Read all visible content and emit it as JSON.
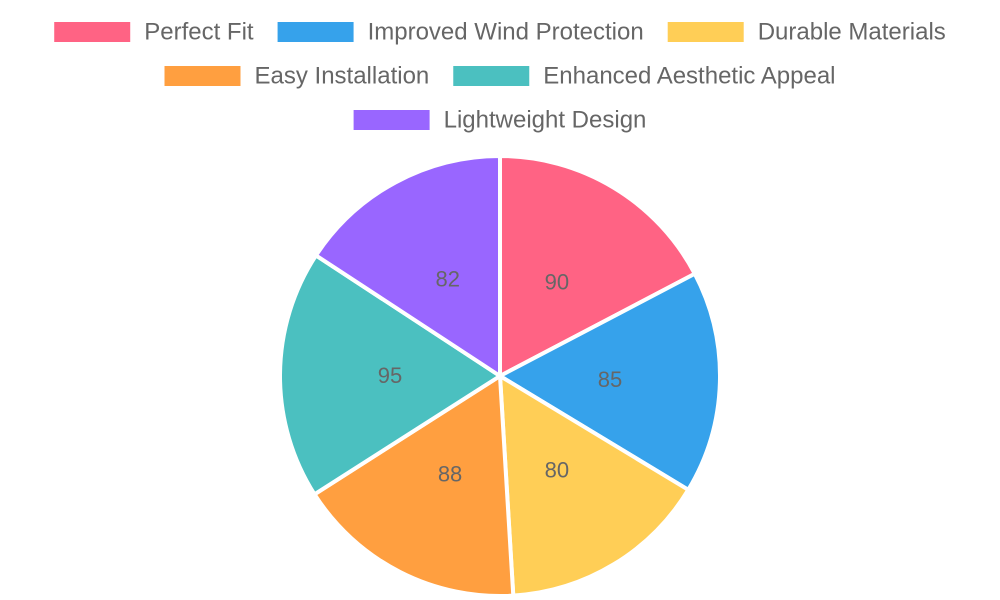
{
  "chart_data": {
    "type": "pie",
    "categories": [
      "Perfect Fit",
      "Improved Wind Protection",
      "Durable Materials",
      "Easy Installation",
      "Enhanced Aesthetic Appeal",
      "Lightweight Design"
    ],
    "values": [
      90,
      85,
      80,
      88,
      95,
      82
    ],
    "colors": [
      "#ff6384",
      "#36a2eb",
      "#ffce56",
      "#ff9f40",
      "#4bc0c0",
      "#9966ff"
    ],
    "legend_position": "top",
    "data_labels": true
  }
}
